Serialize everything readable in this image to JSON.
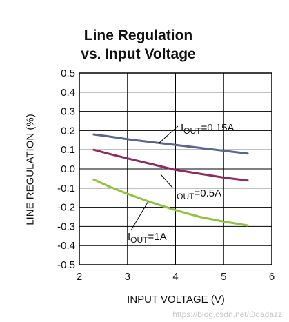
{
  "chart_data": {
    "type": "line",
    "title_line1": "Line Regulation",
    "title_line2": "vs. Input Voltage",
    "xlabel": "INPUT VOLTAGE (V)",
    "ylabel": "LINE REGULATION (%)",
    "xlim": [
      2,
      6
    ],
    "ylim": [
      -0.5,
      0.5
    ],
    "x_ticks": [
      2,
      3,
      4,
      5,
      6
    ],
    "y_ticks": [
      -0.5,
      -0.4,
      -0.3,
      -0.2,
      -0.1,
      0.0,
      0.1,
      0.2,
      0.3,
      0.4,
      0.5
    ],
    "y_tick_labels": [
      "-0.5",
      "-0.4",
      "-0.3",
      "-0.2",
      "-0.1",
      "0.0",
      "0.1",
      "0.2",
      "0.3",
      "0.4",
      "0.5"
    ],
    "grid": true,
    "series": [
      {
        "name": "IOUT=0.15A",
        "label_main": "I",
        "label_sub": "OUT",
        "label_rest": "=0.15A",
        "color": "#5a6690",
        "x": [
          2.3,
          2.6,
          3.0,
          3.5,
          4.0,
          4.5,
          5.0,
          5.5
        ],
        "y": [
          0.18,
          0.17,
          0.155,
          0.14,
          0.125,
          0.11,
          0.095,
          0.08
        ]
      },
      {
        "name": "IOUT=0.5A",
        "label_main": "I",
        "label_sub": "OUT",
        "label_rest": "=0.5A",
        "color": "#8c2a62",
        "x": [
          2.3,
          2.6,
          3.0,
          3.5,
          4.0,
          4.5,
          5.0,
          5.5
        ],
        "y": [
          0.1,
          0.08,
          0.055,
          0.025,
          -0.005,
          -0.025,
          -0.045,
          -0.06
        ]
      },
      {
        "name": "IOUT=1A",
        "label_main": "I",
        "label_sub": "OUT",
        "label_rest": "=1A",
        "color": "#8cc43c",
        "x": [
          2.3,
          2.6,
          3.0,
          3.5,
          4.0,
          4.5,
          5.0,
          5.5
        ],
        "y": [
          -0.055,
          -0.09,
          -0.13,
          -0.175,
          -0.215,
          -0.25,
          -0.275,
          -0.295
        ]
      }
    ]
  },
  "watermark_text": "https://blog.csdn.net/Odadazz"
}
